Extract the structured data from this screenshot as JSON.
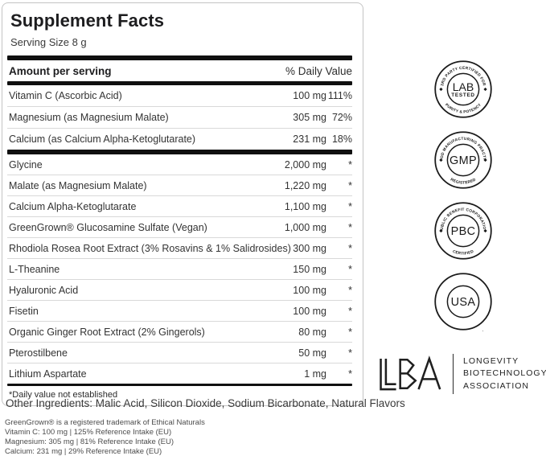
{
  "colors": {
    "ink": "#1a1a1a",
    "bar": "#101010",
    "divider": "#d9d9d9",
    "panel_border": "#c4c4c4"
  },
  "panel": {
    "title": "Supplement Facts",
    "serving_size": "Serving Size 8 g",
    "header": {
      "left": "Amount per serving",
      "right": "% Daily Value"
    },
    "daily_value_rows": [
      {
        "name": "Vitamin C (Ascorbic Acid)",
        "amount": "100 mg",
        "dv": "111%"
      },
      {
        "name": "Magnesium (as Magnesium Malate)",
        "amount": "305 mg",
        "dv": "72%"
      },
      {
        "name": "Calcium (as Calcium Alpha-Ketoglutarate)",
        "amount": "231 mg",
        "dv": "18%"
      }
    ],
    "other_rows": [
      {
        "name": "Glycine",
        "amount": "2,000 mg",
        "dv": "*"
      },
      {
        "name": "Malate (as Magnesium Malate)",
        "amount": "1,220 mg",
        "dv": "*"
      },
      {
        "name": "Calcium Alpha-Ketoglutarate",
        "amount": "1,100 mg",
        "dv": "*"
      },
      {
        "name": "GreenGrown® Glucosamine Sulfate (Vegan)",
        "amount": "1,000 mg",
        "dv": "*"
      },
      {
        "name": "Rhodiola Rosea Root Extract (3% Rosavins & 1% Salidrosides)",
        "amount": "300 mg",
        "dv": "*"
      },
      {
        "name": "L-Theanine",
        "amount": "150 mg",
        "dv": "*"
      },
      {
        "name": "Hyaluronic Acid",
        "amount": "100 mg",
        "dv": "*"
      },
      {
        "name": "Fisetin",
        "amount": "100 mg",
        "dv": "*"
      },
      {
        "name": "Organic Ginger Root Extract (2% Gingerols)",
        "amount": "80 mg",
        "dv": "*"
      },
      {
        "name": "Pterostilbene",
        "amount": "50 mg",
        "dv": "*"
      },
      {
        "name": "Lithium Aspartate",
        "amount": "1 mg",
        "dv": "*"
      }
    ],
    "footnote": "*Daily value not established"
  },
  "other_ingredients": "Other Ingredients: Malic Acid, Silicon Dioxide, Sodium Bicarbonate, Natural Flavors",
  "fine_print": [
    "GreenGrown® is a registered trademark of Ethical Naturals",
    "Vitamin C: 100 mg | 125% Reference Intake (EU)",
    "Magnesium: 305 mg | 81% Reference Intake (EU)",
    "Calcium: 231 mg | 29% Reference Intake (EU)"
  ],
  "seals": [
    {
      "id": "lab-tested",
      "arc_top": "3RD PARTY CERTIFIED FOR",
      "arc_bottom": "PURITY & POTENCY",
      "center": [
        "LAB",
        "TESTED"
      ],
      "separators": true,
      "full_wrap": false
    },
    {
      "id": "gmp",
      "arc_top": "GOOD MANUFACTURING PRACTICE",
      "arc_bottom": "REGISTERED",
      "center": [
        "GMP"
      ],
      "separators": true,
      "full_wrap": false
    },
    {
      "id": "pbc",
      "arc_top": "PUBLIC BENEFIT CORPORATION",
      "arc_bottom": "CERTIFIED",
      "center": [
        "PBC"
      ],
      "separators": true,
      "full_wrap": false
    },
    {
      "id": "made-in-usa",
      "arc_top": "MADE IN THE UNITED STATES OF AMERICA",
      "arc_bottom": "",
      "center": [
        "USA"
      ],
      "separators": false,
      "full_wrap": true
    }
  ],
  "association": {
    "logo_text": "LBA",
    "lines": [
      "LONGEVITY",
      "BIOTECHNOLOGY",
      "ASSOCIATION"
    ]
  }
}
